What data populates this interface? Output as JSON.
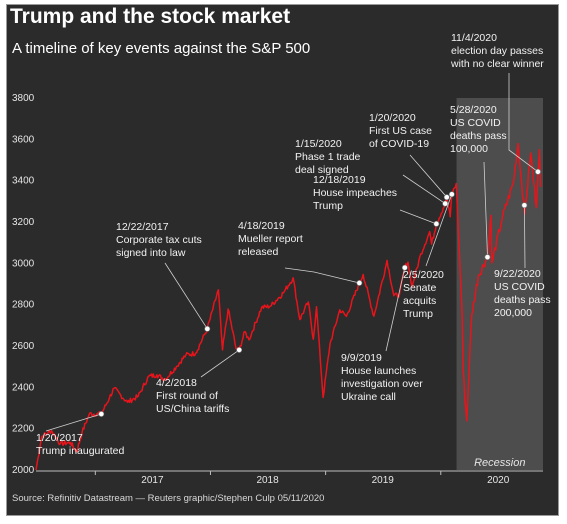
{
  "header": {
    "title": "Trump and the stock market",
    "subtitle": "A timeline of key events against the S&P 500"
  },
  "footer": {
    "source": "Source: Refinitiv Datastream — Reuters graphic/Stephen Culp 05/11/2020"
  },
  "colors": {
    "background": "#2b2b2b",
    "line": "#e8141b",
    "recession_band": "#4d4d4d",
    "text": "#ffffff"
  },
  "chart_data": {
    "type": "line",
    "series": [
      {
        "values": [
          [
            "2016-06-27",
            2000
          ],
          [
            "2016-07-15",
            2162
          ],
          [
            "2016-08-15",
            2190
          ],
          [
            "2016-09-12",
            2127
          ],
          [
            "2016-10-14",
            2133
          ],
          [
            "2016-11-03",
            2088
          ],
          [
            "2016-11-20",
            2182
          ],
          [
            "2016-12-13",
            2271
          ],
          [
            "2017-01-20",
            2271
          ],
          [
            "2017-02-15",
            2350
          ],
          [
            "2017-03-01",
            2395
          ],
          [
            "2017-04-13",
            2328
          ],
          [
            "2017-05-17",
            2357
          ],
          [
            "2017-06-19",
            2453
          ],
          [
            "2017-07-15",
            2460
          ],
          [
            "2017-08-10",
            2438
          ],
          [
            "2017-09-15",
            2500
          ],
          [
            "2017-10-15",
            2557
          ],
          [
            "2017-11-15",
            2565
          ],
          [
            "2017-12-22",
            2683
          ],
          [
            "2018-01-26",
            2872
          ],
          [
            "2018-02-08",
            2581
          ],
          [
            "2018-02-26",
            2779
          ],
          [
            "2018-03-23",
            2588
          ],
          [
            "2018-04-02",
            2581
          ],
          [
            "2018-04-20",
            2670
          ],
          [
            "2018-05-03",
            2630
          ],
          [
            "2018-06-12",
            2786
          ],
          [
            "2018-07-10",
            2793
          ],
          [
            "2018-08-20",
            2857
          ],
          [
            "2018-09-20",
            2930
          ],
          [
            "2018-10-11",
            2728
          ],
          [
            "2018-11-07",
            2813
          ],
          [
            "2018-11-23",
            2633
          ],
          [
            "2018-12-03",
            2790
          ],
          [
            "2018-12-24",
            2351
          ],
          [
            "2019-01-15",
            2610
          ],
          [
            "2019-02-15",
            2775
          ],
          [
            "2019-03-08",
            2743
          ],
          [
            "2019-04-18",
            2905
          ],
          [
            "2019-04-30",
            2946
          ],
          [
            "2019-06-03",
            2744
          ],
          [
            "2019-07-15",
            3014
          ],
          [
            "2019-08-05",
            2844
          ],
          [
            "2019-08-23",
            2847
          ],
          [
            "2019-09-09",
            2979
          ],
          [
            "2019-09-19",
            3006
          ],
          [
            "2019-10-02",
            2887
          ],
          [
            "2019-10-30",
            3046
          ],
          [
            "2019-11-27",
            3153
          ],
          [
            "2019-12-03",
            3093
          ],
          [
            "2019-12-18",
            3191
          ],
          [
            "2020-01-15",
            3289
          ],
          [
            "2020-01-20",
            3320
          ],
          [
            "2020-01-31",
            3225
          ],
          [
            "2020-02-05",
            3334
          ],
          [
            "2020-02-19",
            3386
          ],
          [
            "2020-03-09",
            2746
          ],
          [
            "2020-03-12",
            2480
          ],
          [
            "2020-03-23",
            2237
          ],
          [
            "2020-04-08",
            2750
          ],
          [
            "2020-04-29",
            2939
          ],
          [
            "2020-05-28",
            3030
          ],
          [
            "2020-06-08",
            3232
          ],
          [
            "2020-06-11",
            3002
          ],
          [
            "2020-07-15",
            3226
          ],
          [
            "2020-08-18",
            3389
          ],
          [
            "2020-09-02",
            3580
          ],
          [
            "2020-09-23",
            3237
          ],
          [
            "2020-10-12",
            3534
          ],
          [
            "2020-10-30",
            3270
          ],
          [
            "2020-11-04",
            3443
          ],
          [
            "2020-11-09",
            3550
          ],
          [
            "2020-11-12",
            3370
          ]
        ]
      }
    ],
    "yticks": [
      2000,
      2200,
      2400,
      2600,
      2800,
      3000,
      3200,
      3400,
      3600,
      3800
    ],
    "ylim": [
      2000,
      3800
    ],
    "xticks": [
      "2017",
      "2018",
      "2019",
      "2020"
    ],
    "xlim": [
      "2016-06-27",
      "2020-11-20"
    ],
    "grid": false,
    "recession": {
      "start": "2020-02-20",
      "end": "2020-11-20",
      "label": "Recession"
    },
    "annotations": [
      {
        "date": "2017-01-20",
        "value": 2271,
        "lines": [
          "1/20/2017",
          "Trump inaugurated"
        ]
      },
      {
        "date": "2017-12-22",
        "value": 2683,
        "lines": [
          "12/22/2017",
          "Corporate tax cuts",
          "signed into law"
        ]
      },
      {
        "date": "2018-04-02",
        "value": 2581,
        "lines": [
          "4/2/2018",
          "First round of",
          "US/China tariffs"
        ]
      },
      {
        "date": "2019-04-18",
        "value": 2905,
        "lines": [
          "4/18/2019",
          "Mueller report",
          "released"
        ]
      },
      {
        "date": "2019-09-09",
        "value": 2979,
        "lines": [
          "9/9/2019",
          "House launches",
          "investigation over",
          "Ukraine call"
        ]
      },
      {
        "date": "2019-12-18",
        "value": 3191,
        "lines": [
          "12/18/2019",
          "House impeaches",
          "Trump"
        ]
      },
      {
        "date": "2020-01-15",
        "value": 3289,
        "lines": [
          "1/15/2020",
          "Phase 1 trade",
          "deal signed"
        ]
      },
      {
        "date": "2020-01-20",
        "value": 3320,
        "lines": [
          "1/20/2020",
          "First US case",
          "of COVID-19"
        ]
      },
      {
        "date": "2020-02-05",
        "value": 3334,
        "lines": [
          "2/5/2020",
          "Senate",
          "acquits",
          "Trump"
        ]
      },
      {
        "date": "2020-05-28",
        "value": 3030,
        "lines": [
          "5/28/2020",
          "US COVID",
          "deaths pass",
          "100,000"
        ]
      },
      {
        "date": "2020-09-22",
        "value": 3281,
        "lines": [
          "9/22/2020",
          "US COVID",
          "deaths pass",
          "200,000"
        ]
      },
      {
        "date": "2020-11-04",
        "value": 3443,
        "lines": [
          "11/4/2020",
          "election day passes",
          "with no clear winner"
        ]
      }
    ]
  }
}
